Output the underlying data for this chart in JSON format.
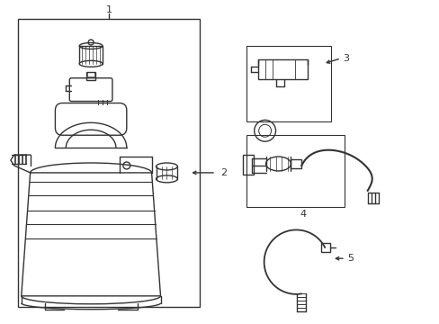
{
  "bg_color": "#ffffff",
  "lc": "#333333",
  "lw": 1.0,
  "fig_w": 4.89,
  "fig_h": 3.6,
  "dpi": 100
}
